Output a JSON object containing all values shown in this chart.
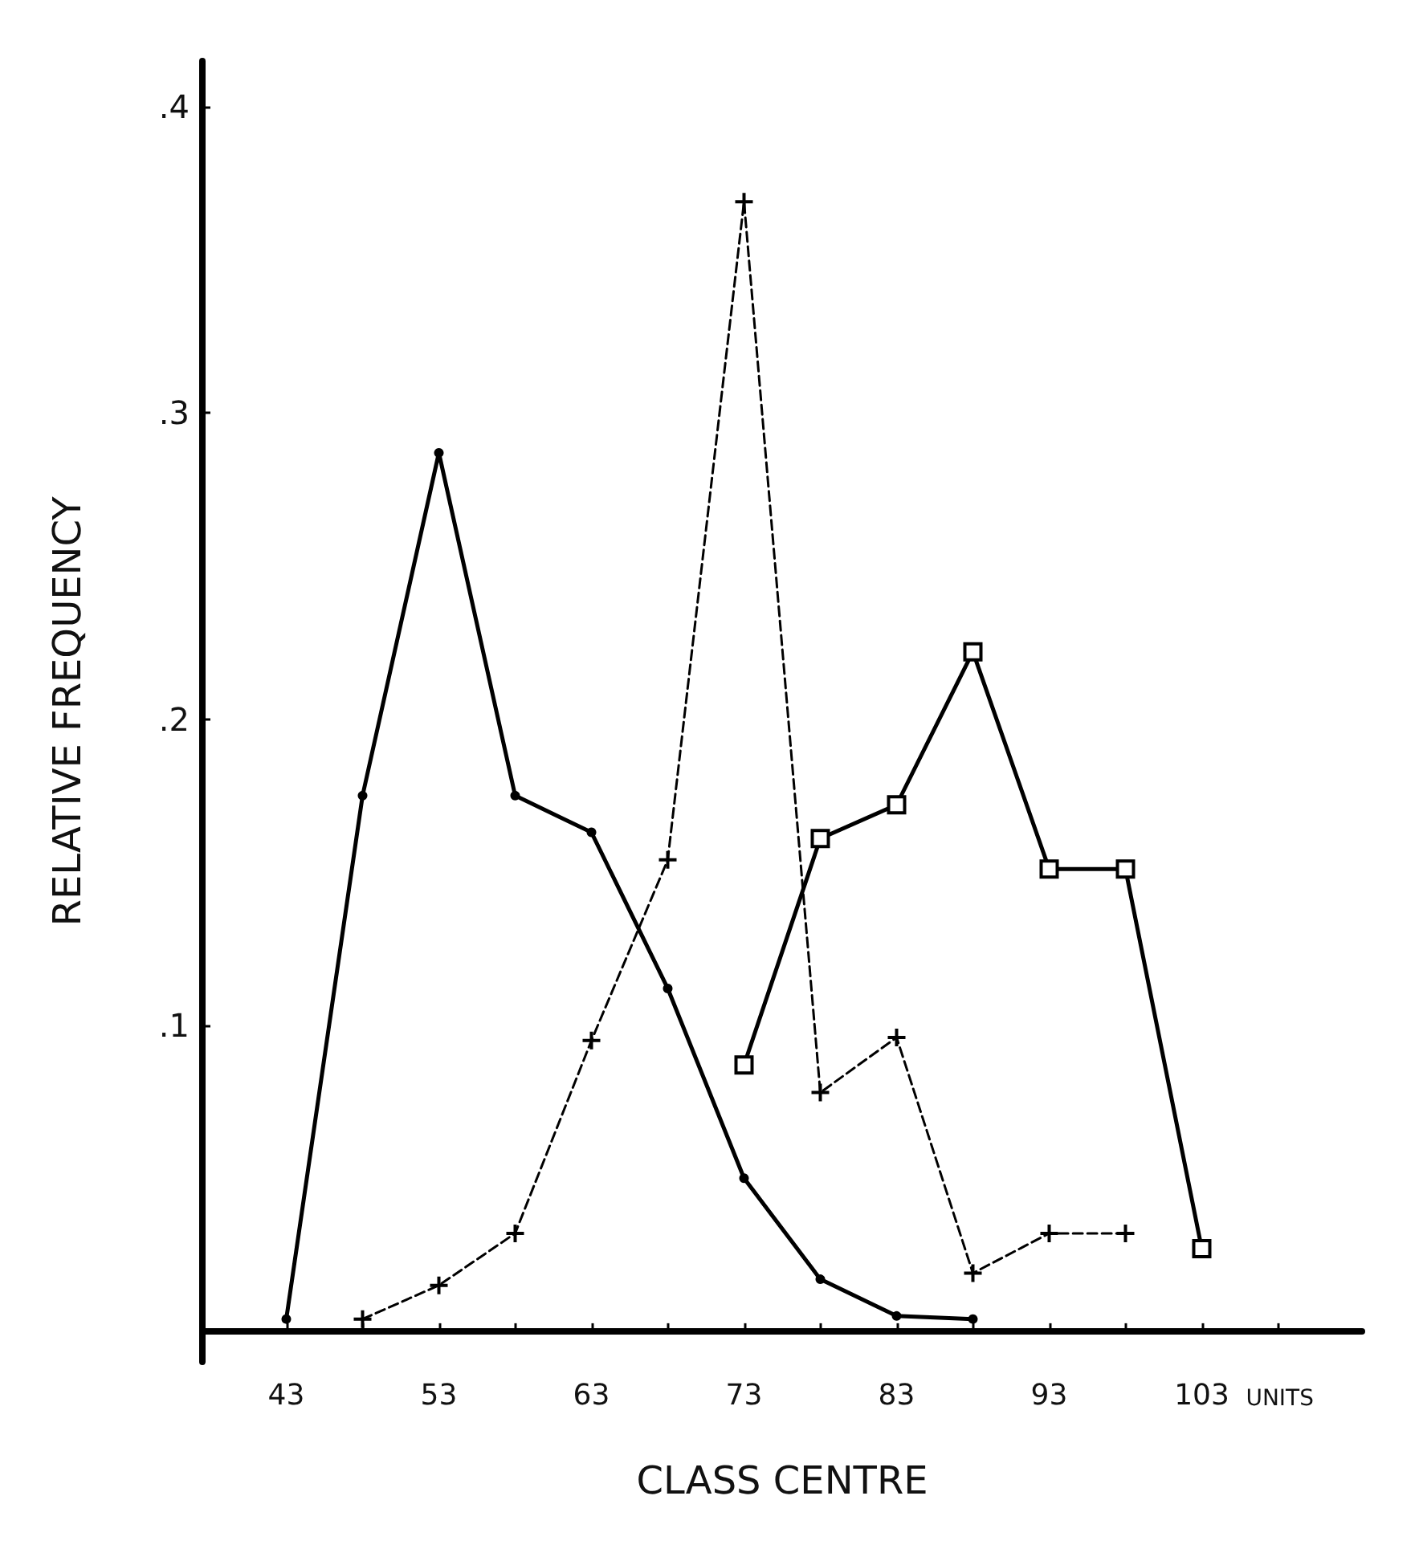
{
  "chart_data": {
    "type": "line",
    "xlabel": "CLASS CENTRE",
    "ylabel": "RELATIVE FREQUENCY",
    "annotations": [
      "UNITS"
    ],
    "xlim": [
      37.5,
      113.5
    ],
    "xticks": [
      43,
      {
        "value": 48,
        "label": null
      },
      53,
      {
        "value": 58,
        "label": null
      },
      63,
      {
        "value": 68,
        "label": null
      },
      73,
      {
        "value": 78,
        "label": null
      },
      83,
      {
        "value": 88,
        "label": null
      },
      93,
      {
        "value": 98,
        "label": null
      },
      103,
      {
        "value": 108,
        "label": null
      }
    ],
    "ylim": [
      -0.01,
      0.415
    ],
    "yticks": [
      {
        "value": 0.1,
        "label": ".1"
      },
      {
        "value": 0.2,
        "label": ".2"
      },
      {
        "value": 0.3,
        "label": ".3"
      },
      {
        "value": 0.4,
        "label": ".4"
      }
    ],
    "grid": false,
    "series": [
      {
        "color": "#000000",
        "marker": "circle",
        "line_style": "solid",
        "x": [
          43,
          48,
          53,
          58,
          63,
          68,
          73,
          78,
          83,
          88
        ],
        "values": [
          0.004,
          0.175,
          0.287,
          0.175,
          0.163,
          0.112,
          0.05,
          0.017,
          0.005,
          0.004
        ]
      },
      {
        "color": "#000000",
        "marker": "cross",
        "line_style": "dashed",
        "x": [
          48,
          53,
          58,
          63,
          68,
          73,
          78,
          83,
          88,
          93,
          98
        ],
        "values": [
          0.004,
          0.015,
          0.032,
          0.095,
          0.154,
          0.369,
          0.078,
          0.096,
          0.019,
          0.032,
          0.032
        ]
      },
      {
        "color": "#000000",
        "marker": "square",
        "line_style": "solid",
        "x": [
          73,
          78,
          83,
          88,
          93,
          98,
          103
        ],
        "values": [
          0.087,
          0.161,
          0.172,
          0.222,
          0.151,
          0.151,
          0.027
        ]
      }
    ]
  }
}
